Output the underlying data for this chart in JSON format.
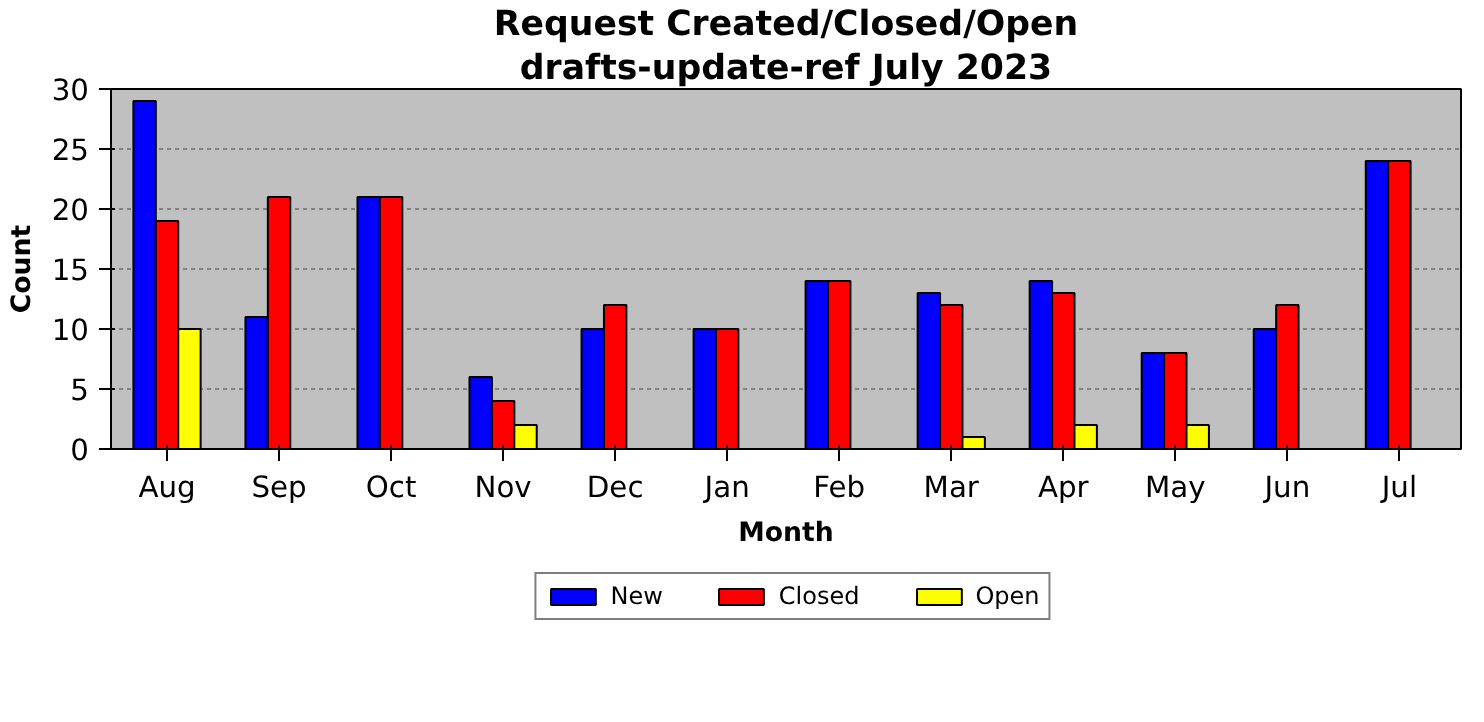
{
  "chart_data": {
    "type": "bar",
    "title": "Request Created/Closed/Open",
    "subtitle": "drafts-update-ref July 2023",
    "xlabel": "Month",
    "ylabel": "Count",
    "categories": [
      "Aug",
      "Sep",
      "Oct",
      "Nov",
      "Dec",
      "Jan",
      "Feb",
      "Mar",
      "Apr",
      "May",
      "Jun",
      "Jul"
    ],
    "series": [
      {
        "name": "New",
        "color": "#0000ff",
        "values": [
          29,
          11,
          21,
          6,
          10,
          10,
          14,
          13,
          14,
          8,
          10,
          24
        ]
      },
      {
        "name": "Closed",
        "color": "#ff0000",
        "values": [
          19,
          21,
          21,
          4,
          12,
          10,
          14,
          12,
          13,
          8,
          12,
          24
        ]
      },
      {
        "name": "Open",
        "color": "#ffff00",
        "values": [
          10,
          0,
          0,
          2,
          0,
          0,
          0,
          1,
          2,
          2,
          0,
          0
        ]
      }
    ],
    "ylim": [
      0,
      30
    ],
    "yticks": [
      0,
      5,
      10,
      15,
      20,
      25,
      30
    ],
    "grid": "y",
    "legend": "bottom"
  }
}
